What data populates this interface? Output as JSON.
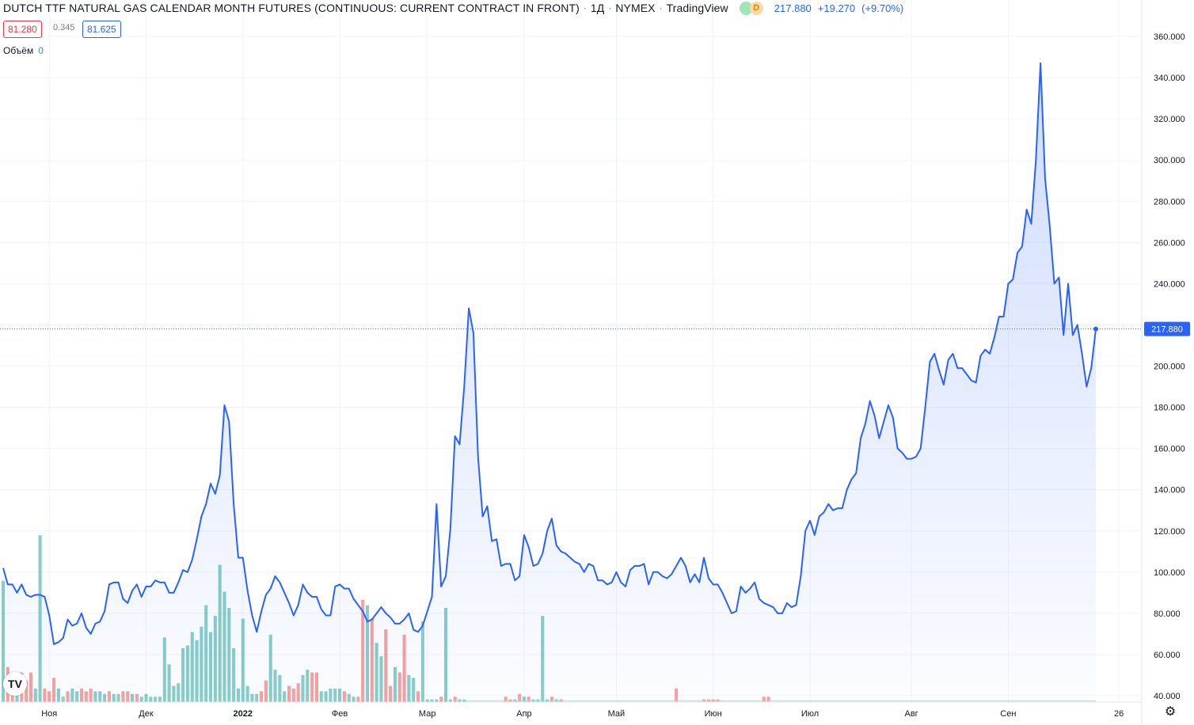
{
  "header": {
    "symbol": "DUTCH TTF NATURAL GAS CALENDAR MONTH FUTURES (CONTINUOUS: CURRENT CONTRACT IN FRONT)",
    "interval": "1Д",
    "exchange": "NYMEX",
    "source": "TradingView",
    "status_badge": "D",
    "last": "217.880",
    "change": "+19.270",
    "change_pct": "(+9.70%)"
  },
  "bid": "81.280",
  "spread": "0.345",
  "ask": "81.625",
  "volume_label": "Объём",
  "volume_value": "0",
  "logo_text": "TV",
  "colors": {
    "line": "#2962ff",
    "bid": "#f23645",
    "ask": "#2962ff",
    "vol_up": "#26a69a",
    "vol_down": "#ef5350",
    "grid": "#f0f3fa"
  },
  "chart_data": {
    "type": "line",
    "ylim": [
      40,
      360
    ],
    "y_ticks": [
      "360.000",
      "340.000",
      "320.000",
      "300.000",
      "280.000",
      "260.000",
      "240.000",
      "220.000",
      "200.000",
      "180.000",
      "160.000",
      "140.000",
      "120.000",
      "100.000",
      "80.000",
      "60.000",
      "40.000"
    ],
    "x_tick_labels": [
      "Ноя",
      "Дек",
      "2022",
      "Фев",
      "Мар",
      "Апр",
      "Май",
      "Июн",
      "Июл",
      "Авг",
      "Сен",
      "26"
    ],
    "last_price_label": "217.880",
    "series": [
      {
        "values": [
          102,
          94,
          94,
          90,
          94,
          89,
          88,
          89,
          89,
          88,
          79,
          65,
          66,
          68,
          77,
          74,
          75,
          80,
          73,
          70,
          75,
          76,
          81,
          94,
          95,
          95,
          87,
          85,
          91,
          94,
          88,
          93,
          93,
          96,
          95,
          95,
          90,
          90,
          95,
          101,
          100,
          106,
          116,
          127,
          133,
          143,
          138,
          147,
          181,
          173,
          133,
          107,
          107,
          91,
          79,
          71,
          81,
          89,
          92,
          98,
          95,
          90,
          85,
          79,
          84,
          94,
          90,
          88,
          88,
          82,
          79,
          79,
          93,
          94,
          92,
          92,
          87,
          84,
          81,
          76,
          77,
          80,
          83,
          80,
          78,
          75,
          75,
          77,
          80,
          72,
          71,
          74,
          81,
          88,
          133,
          93,
          98,
          121,
          166,
          162,
          190,
          228,
          216,
          156,
          127,
          132,
          115,
          116,
          103,
          104,
          104,
          96,
          98,
          118,
          112,
          103,
          104,
          109,
          120,
          126,
          113,
          110,
          109,
          107,
          105,
          104,
          100,
          104,
          103,
          96,
          96,
          94,
          95,
          100,
          95,
          93,
          101,
          103,
          103,
          104,
          94,
          100,
          100,
          98,
          97,
          99,
          103,
          107,
          103,
          95,
          99,
          95,
          107,
          97,
          94,
          94,
          90,
          85,
          80,
          81,
          93,
          90,
          92,
          95,
          87,
          85,
          84,
          83,
          80,
          80,
          85,
          83,
          84,
          98,
          120,
          125,
          118,
          127,
          129,
          133,
          130,
          131,
          131,
          140,
          145,
          148,
          165,
          172,
          183,
          176,
          165,
          173,
          181,
          175,
          160,
          158,
          155,
          155,
          156,
          160,
          180,
          202,
          206,
          198,
          191,
          203,
          206,
          199,
          199,
          196,
          193,
          192,
          205,
          208,
          206,
          214,
          224,
          224,
          240,
          242,
          255,
          258,
          276,
          269,
          300,
          347,
          291,
          268,
          240,
          243,
          215,
          240,
          215,
          220,
          206,
          190,
          199,
          218
        ]
      }
    ],
    "volume_bars": [
      {
        "i": 0,
        "v": 45,
        "c": "g"
      },
      {
        "i": 1,
        "v": 13,
        "c": "r"
      },
      {
        "i": 2,
        "v": 9,
        "c": "r"
      },
      {
        "i": 3,
        "v": 7,
        "c": "g"
      },
      {
        "i": 4,
        "v": 11,
        "c": "r"
      },
      {
        "i": 5,
        "v": 8,
        "c": "r"
      },
      {
        "i": 6,
        "v": 11,
        "c": "r"
      },
      {
        "i": 7,
        "v": 5,
        "c": "g"
      },
      {
        "i": 8,
        "v": 62,
        "c": "g"
      },
      {
        "i": 9,
        "v": 5,
        "c": "r"
      },
      {
        "i": 10,
        "v": 4,
        "c": "r"
      },
      {
        "i": 11,
        "v": 9,
        "c": "r"
      },
      {
        "i": 12,
        "v": 5,
        "c": "g"
      },
      {
        "i": 13,
        "v": 2,
        "c": "g"
      },
      {
        "i": 14,
        "v": 4,
        "c": "r"
      },
      {
        "i": 15,
        "v": 5,
        "c": "g"
      },
      {
        "i": 16,
        "v": 4,
        "c": "g"
      },
      {
        "i": 17,
        "v": 5,
        "c": "r"
      },
      {
        "i": 18,
        "v": 4,
        "c": "r"
      },
      {
        "i": 19,
        "v": 5,
        "c": "r"
      },
      {
        "i": 20,
        "v": 4,
        "c": "g"
      },
      {
        "i": 21,
        "v": 4,
        "c": "g"
      },
      {
        "i": 22,
        "v": 3,
        "c": "g"
      },
      {
        "i": 23,
        "v": 4,
        "c": "r"
      },
      {
        "i": 24,
        "v": 3,
        "c": "g"
      },
      {
        "i": 25,
        "v": 3,
        "c": "g"
      },
      {
        "i": 26,
        "v": 4,
        "c": "r"
      },
      {
        "i": 27,
        "v": 4,
        "c": "r"
      },
      {
        "i": 28,
        "v": 3,
        "c": "g"
      },
      {
        "i": 29,
        "v": 3,
        "c": "r"
      },
      {
        "i": 30,
        "v": 2,
        "c": "g"
      },
      {
        "i": 31,
        "v": 3,
        "c": "g"
      },
      {
        "i": 32,
        "v": 2,
        "c": "g"
      },
      {
        "i": 33,
        "v": 2,
        "c": "g"
      },
      {
        "i": 34,
        "v": 2,
        "c": "g"
      },
      {
        "i": 35,
        "v": 24,
        "c": "g"
      },
      {
        "i": 36,
        "v": 14,
        "c": "g"
      },
      {
        "i": 37,
        "v": 6,
        "c": "g"
      },
      {
        "i": 38,
        "v": 7,
        "c": "g"
      },
      {
        "i": 39,
        "v": 20,
        "c": "g"
      },
      {
        "i": 40,
        "v": 21,
        "c": "g"
      },
      {
        "i": 41,
        "v": 26,
        "c": "g"
      },
      {
        "i": 42,
        "v": 23,
        "c": "g"
      },
      {
        "i": 43,
        "v": 28,
        "c": "g"
      },
      {
        "i": 44,
        "v": 36,
        "c": "g"
      },
      {
        "i": 45,
        "v": 26,
        "c": "g"
      },
      {
        "i": 46,
        "v": 32,
        "c": "g"
      },
      {
        "i": 47,
        "v": 51,
        "c": "g"
      },
      {
        "i": 48,
        "v": 41,
        "c": "g"
      },
      {
        "i": 49,
        "v": 35,
        "c": "g"
      },
      {
        "i": 50,
        "v": 20,
        "c": "g"
      },
      {
        "i": 51,
        "v": 5,
        "c": "g"
      },
      {
        "i": 52,
        "v": 31,
        "c": "g"
      },
      {
        "i": 53,
        "v": 6,
        "c": "g"
      },
      {
        "i": 54,
        "v": 3,
        "c": "g"
      },
      {
        "i": 55,
        "v": 3,
        "c": "g"
      },
      {
        "i": 56,
        "v": 4,
        "c": "r"
      },
      {
        "i": 57,
        "v": 8,
        "c": "r"
      },
      {
        "i": 58,
        "v": 25,
        "c": "g"
      },
      {
        "i": 59,
        "v": 12,
        "c": "g"
      },
      {
        "i": 60,
        "v": 10,
        "c": "g"
      },
      {
        "i": 61,
        "v": 4,
        "c": "g"
      },
      {
        "i": 62,
        "v": 6,
        "c": "r"
      },
      {
        "i": 63,
        "v": 5,
        "c": "r"
      },
      {
        "i": 64,
        "v": 7,
        "c": "r"
      },
      {
        "i": 65,
        "v": 10,
        "c": "g"
      },
      {
        "i": 66,
        "v": 12,
        "c": "g"
      },
      {
        "i": 67,
        "v": 11,
        "c": "r"
      },
      {
        "i": 68,
        "v": 11,
        "c": "r"
      },
      {
        "i": 69,
        "v": 4,
        "c": "g"
      },
      {
        "i": 70,
        "v": 4,
        "c": "g"
      },
      {
        "i": 71,
        "v": 5,
        "c": "g"
      },
      {
        "i": 72,
        "v": 5,
        "c": "g"
      },
      {
        "i": 73,
        "v": 5,
        "c": "g"
      },
      {
        "i": 74,
        "v": 4,
        "c": "r"
      },
      {
        "i": 75,
        "v": 3,
        "c": "g"
      },
      {
        "i": 76,
        "v": 2,
        "c": "g"
      },
      {
        "i": 77,
        "v": 2,
        "c": "r"
      },
      {
        "i": 78,
        "v": 38,
        "c": "r"
      },
      {
        "i": 79,
        "v": 36,
        "c": "g"
      },
      {
        "i": 80,
        "v": 31,
        "c": "r"
      },
      {
        "i": 81,
        "v": 22,
        "c": "g"
      },
      {
        "i": 82,
        "v": 17,
        "c": "g"
      },
      {
        "i": 83,
        "v": 27,
        "c": "r"
      },
      {
        "i": 84,
        "v": 6,
        "c": "r"
      },
      {
        "i": 85,
        "v": 13,
        "c": "g"
      },
      {
        "i": 86,
        "v": 11,
        "c": "r"
      },
      {
        "i": 87,
        "v": 25,
        "c": "r"
      },
      {
        "i": 88,
        "v": 10,
        "c": "g"
      },
      {
        "i": 89,
        "v": 9,
        "c": "g"
      },
      {
        "i": 90,
        "v": 4,
        "c": "r"
      },
      {
        "i": 91,
        "v": 30,
        "c": "g"
      },
      {
        "i": 92,
        "v": 1,
        "c": "g"
      },
      {
        "i": 93,
        "v": 1,
        "c": "g"
      },
      {
        "i": 94,
        "v": 1,
        "c": "g"
      },
      {
        "i": 95,
        "v": 2,
        "c": "r"
      },
      {
        "i": 96,
        "v": 35,
        "c": "g"
      },
      {
        "i": 97,
        "v": 1,
        "c": "g"
      },
      {
        "i": 98,
        "v": 2,
        "c": "r"
      },
      {
        "i": 99,
        "v": 1,
        "c": "g"
      },
      {
        "i": 100,
        "v": 1,
        "c": "g"
      },
      {
        "i": 109,
        "v": 2,
        "c": "r"
      },
      {
        "i": 110,
        "v": 1,
        "c": "r"
      },
      {
        "i": 111,
        "v": 1,
        "c": "g"
      },
      {
        "i": 112,
        "v": 3,
        "c": "r"
      },
      {
        "i": 113,
        "v": 2,
        "c": "g"
      },
      {
        "i": 114,
        "v": 2,
        "c": "r"
      },
      {
        "i": 115,
        "v": 1,
        "c": "g"
      },
      {
        "i": 116,
        "v": 1,
        "c": "g"
      },
      {
        "i": 117,
        "v": 32,
        "c": "g"
      },
      {
        "i": 118,
        "v": 1,
        "c": "g"
      },
      {
        "i": 119,
        "v": 2,
        "c": "r"
      },
      {
        "i": 120,
        "v": 1,
        "c": "g"
      },
      {
        "i": 121,
        "v": 1,
        "c": "r"
      },
      {
        "i": 146,
        "v": 5,
        "c": "r"
      },
      {
        "i": 152,
        "v": 1,
        "c": "r"
      },
      {
        "i": 153,
        "v": 1,
        "c": "r"
      },
      {
        "i": 154,
        "v": 1,
        "c": "r"
      },
      {
        "i": 155,
        "v": 1,
        "c": "r"
      },
      {
        "i": 165,
        "v": 2,
        "c": "r"
      },
      {
        "i": 166,
        "v": 2,
        "c": "r"
      }
    ]
  }
}
